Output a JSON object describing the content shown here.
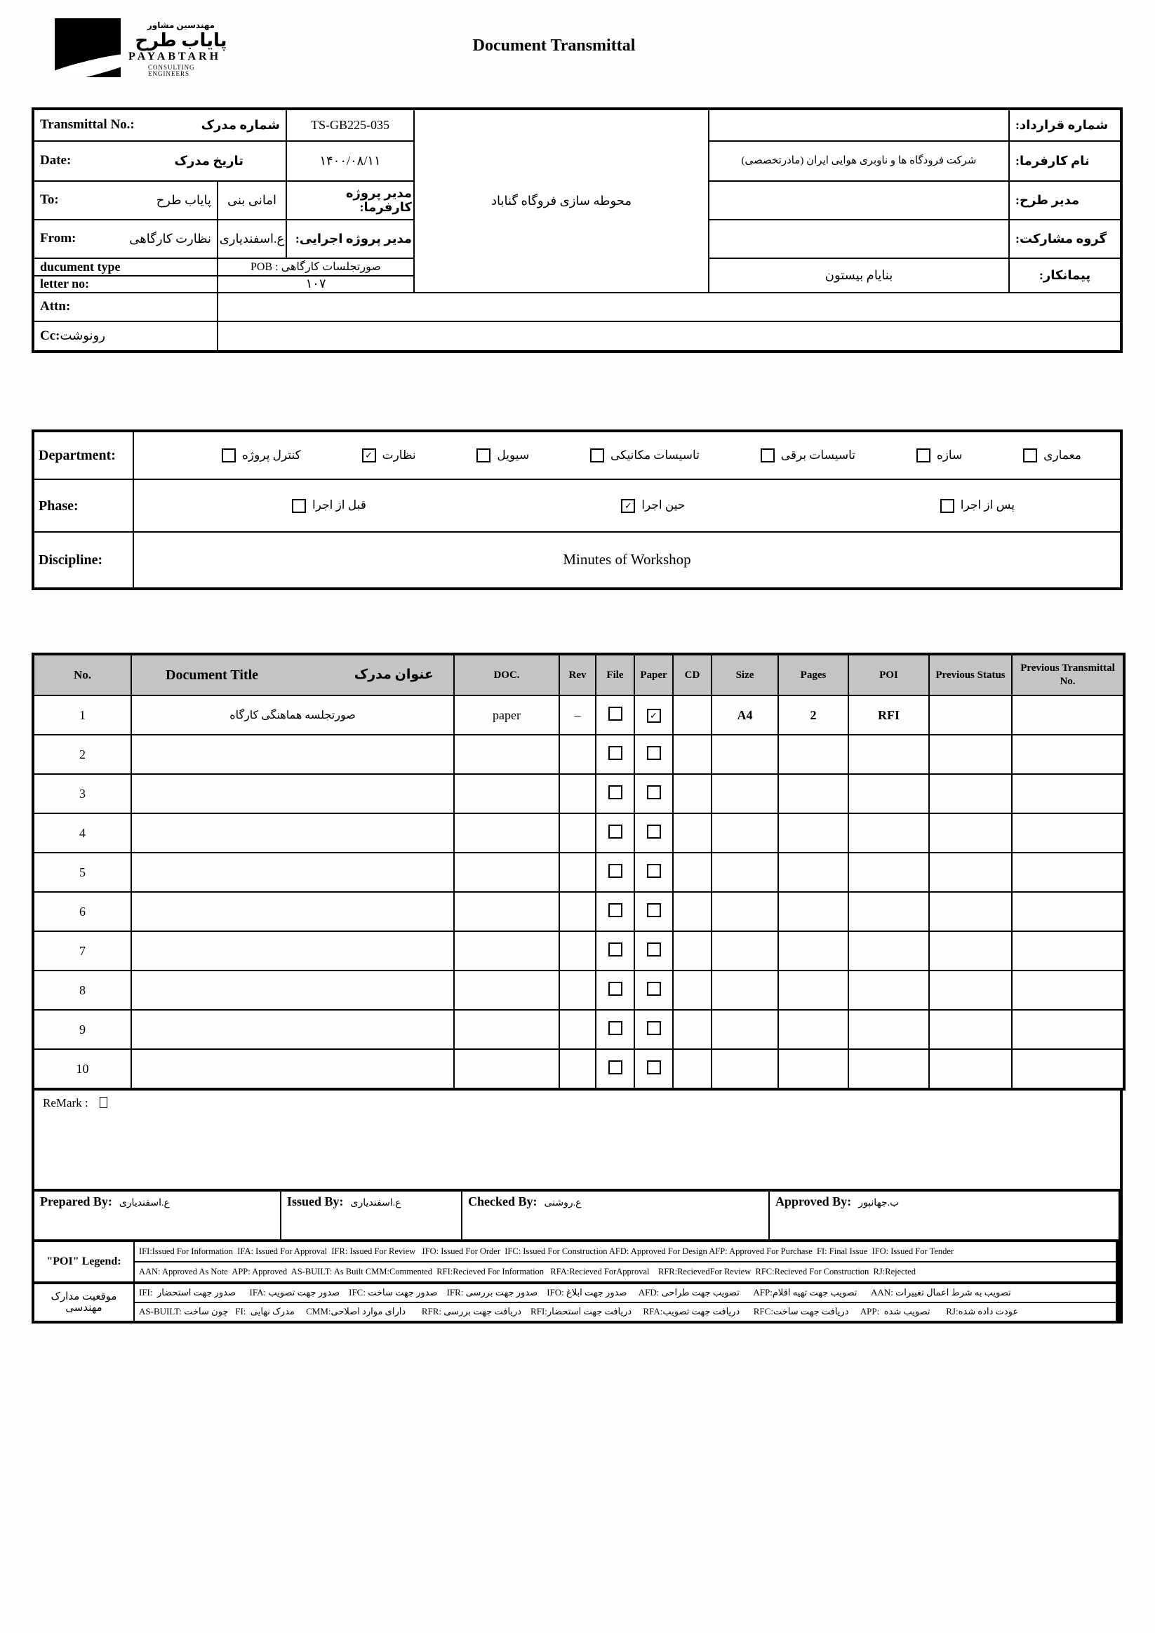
{
  "page": {
    "title": "Document Transmittal"
  },
  "logo": {
    "tagline_fa": "مهندسین مشاور",
    "name_fa": "پایاب طرح",
    "name_en": "PAYABTARH",
    "subtitle_en": "CONSULTING ENGINEERS"
  },
  "top": {
    "transmittal_label_en": "Transmittal No.:",
    "transmittal_label_fa": "شماره مدرک",
    "transmittal_no": "TS-GB225-035",
    "date_label_en": "Date:",
    "date_label_fa": "تاریخ مدرک",
    "date_value": "۱۴۰۰/۰۸/۱۱",
    "to_label_en": "To:",
    "to_value_fa": "پایاب طرح",
    "to_person_fa": "امانی بنی",
    "client_pm_label_fa": "مدیر پروژه کارفرما:",
    "from_label_en": "From:",
    "from_value_fa": "نظارت کارگاهی",
    "from_person_fa": "ع.اسفندیاری",
    "exec_pm_label_fa": "مدیر پروژه اجرایی:",
    "doctype_label_en": "ducument type",
    "doctype_value": "POB : صورتجلسات کارگاهی",
    "letter_label_en": "letter no:",
    "letter_value": "۱۰۷",
    "attn_label": "Attn:",
    "cc_label_en": "Cc:",
    "cc_label_fa": "رونوشت",
    "project_name_fa": "محوطه سازی فروگاه گناباد",
    "contract_no_label_fa": "شماره قرارداد:",
    "client_name_label_fa": "نام کارفرما:",
    "client_name_value_fa": "شرکت فرودگاه ها و ناوبری هوایی ایران (مادرتخصصی)",
    "design_manager_label_fa": "مدیر طرح:",
    "partnership_label_fa": "گروه مشارکت:",
    "contractor_label_fa": "پیمانکار:",
    "contractor_value_fa": "بنایام بیستون"
  },
  "classification": {
    "department_label": "Department:",
    "departments": [
      {
        "label": "کنترل پروژه",
        "checked": false
      },
      {
        "label": "نظارت",
        "checked": true
      },
      {
        "label": "سیویل",
        "checked": false
      },
      {
        "label": "تاسیسات مکانیکی",
        "checked": false
      },
      {
        "label": "تاسیسات برقی",
        "checked": false
      },
      {
        "label": "سازه",
        "checked": false
      },
      {
        "label": "معماری",
        "checked": false
      }
    ],
    "phase_label": "Phase:",
    "phases": [
      {
        "label": "قبل از اجرا",
        "checked": false
      },
      {
        "label": "حین اجرا",
        "checked": true
      },
      {
        "label": "پس از اجرا",
        "checked": false
      }
    ],
    "discipline_label": "Discipline:",
    "discipline_value": "Minutes of Workshop"
  },
  "doc_table": {
    "headers": {
      "no": "No.",
      "title_en": "Document Title",
      "title_fa": "عنوان مدرک",
      "doc": "DOC.",
      "rev": "Rev",
      "file": "File",
      "paper": "Paper",
      "cd": "CD",
      "size": "Size",
      "pages": "Pages",
      "poi": "POI",
      "prev_status": "Previous Status",
      "prev_transmittal": "Previous Transmittal No."
    },
    "rows": [
      {
        "no": "1",
        "title": "صورتجلسه هماهنگی کارگاه",
        "doc": "paper",
        "rev": "–",
        "file": false,
        "paper": true,
        "cd": "",
        "size": "A4",
        "pages": "2",
        "poi": "RFI",
        "prev_status": "",
        "prev_transmittal": ""
      },
      {
        "no": "2",
        "title": "",
        "doc": "",
        "rev": "",
        "file": false,
        "paper": false,
        "cd": "",
        "size": "",
        "pages": "",
        "poi": "",
        "prev_status": "",
        "prev_transmittal": ""
      },
      {
        "no": "3",
        "title": "",
        "doc": "",
        "rev": "",
        "file": false,
        "paper": false,
        "cd": "",
        "size": "",
        "pages": "",
        "poi": "",
        "prev_status": "",
        "prev_transmittal": ""
      },
      {
        "no": "4",
        "title": "",
        "doc": "",
        "rev": "",
        "file": false,
        "paper": false,
        "cd": "",
        "size": "",
        "pages": "",
        "poi": "",
        "prev_status": "",
        "prev_transmittal": ""
      },
      {
        "no": "5",
        "title": "",
        "doc": "",
        "rev": "",
        "file": false,
        "paper": false,
        "cd": "",
        "size": "",
        "pages": "",
        "poi": "",
        "prev_status": "",
        "prev_transmittal": ""
      },
      {
        "no": "6",
        "title": "",
        "doc": "",
        "rev": "",
        "file": false,
        "paper": false,
        "cd": "",
        "size": "",
        "pages": "",
        "poi": "",
        "prev_status": "",
        "prev_transmittal": ""
      },
      {
        "no": "7",
        "title": "",
        "doc": "",
        "rev": "",
        "file": false,
        "paper": false,
        "cd": "",
        "size": "",
        "pages": "",
        "poi": "",
        "prev_status": "",
        "prev_transmittal": ""
      },
      {
        "no": "8",
        "title": "",
        "doc": "",
        "rev": "",
        "file": false,
        "paper": false,
        "cd": "",
        "size": "",
        "pages": "",
        "poi": "",
        "prev_status": "",
        "prev_transmittal": ""
      },
      {
        "no": "9",
        "title": "",
        "doc": "",
        "rev": "",
        "file": false,
        "paper": false,
        "cd": "",
        "size": "",
        "pages": "",
        "poi": "",
        "prev_status": "",
        "prev_transmittal": ""
      },
      {
        "no": "10",
        "title": "",
        "doc": "",
        "rev": "",
        "file": false,
        "paper": false,
        "cd": "",
        "size": "",
        "pages": "",
        "poi": "",
        "prev_status": "",
        "prev_transmittal": ""
      }
    ]
  },
  "remark": {
    "label": "ReMark :"
  },
  "signatures": [
    {
      "label": "Prepared By:",
      "name": "ع.اسفندیاری"
    },
    {
      "label": "Issued By:",
      "name": "ع.اسفندیاری"
    },
    {
      "label": "Checked By:",
      "name": "ع.روشنی"
    },
    {
      "label": "Approved By:",
      "name": "ب.جهانپور"
    }
  ],
  "legend": {
    "poi_label": "\"POI\" Legend:",
    "en_line1": "IFI:Issued For Information  IFA: Issued For Approval  IFR: Issued For Review   IFO: Issued For Order  IFC: Issued For Construction AFD: Approved For Design AFP: Approved For Purchase  FI: Final Issue  IFO: Issued For Tender",
    "en_line2": "AAN: Approved As Note  APP: Approved  AS-BUILT: As Built CMM:Commented  RFI:Recieved For Information   RFA:Recieved ForApproval    RFR:RecievedFor Review  RFC:Recieved For Construction  RJ:Rejected",
    "fa_label": "موقعیت مدارک مهندسی",
    "fa_line1": "IFI:  صدور جهت استحضار      IFA: صدور جهت تصویب    IFC: صدور جهت ساخت    IFR: صدور جهت بررسی    IFO: صدور جهت ابلاغ     AFD: تصویب جهت طراحی      AFP:تصویب جهت تهیه اقلام      AAN: تصویب به شرط اعمال تغییرات",
    "fa_line2": "AS-BUILT: چون ساخت   FI:  مدرک نهایی     CMM:دارای موارد اصلاحی       RFR: دریافت جهت بررسی    RFI:دریافت جهت استحضار     RFA:دریافت جهت تصویب      RFC:دریافت جهت ساخت     APP:  تصویب شده       RJ:عودت داده شده"
  },
  "colors": {
    "table_header_bg": "#c4c4c4",
    "ink": "#000000"
  }
}
